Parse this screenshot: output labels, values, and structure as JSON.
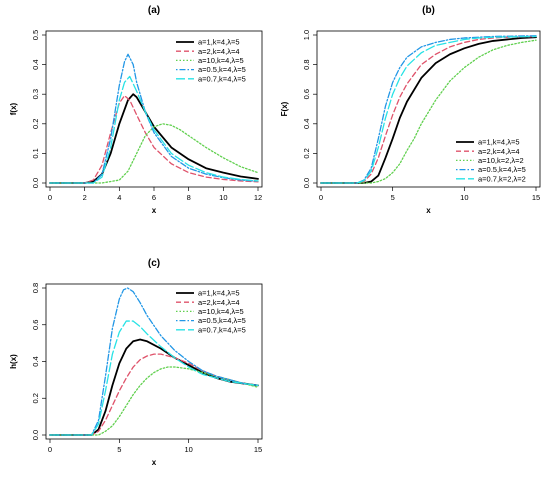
{
  "chart_data": [
    {
      "type": "line",
      "title": "(a)",
      "xlabel": "x",
      "ylabel": "f(x)",
      "xlim": [
        0,
        12
      ],
      "ylim": [
        0,
        0.5
      ],
      "xticks": [
        0,
        2,
        4,
        6,
        8,
        10,
        12
      ],
      "yticks": [
        0.0,
        0.1,
        0.2,
        0.3,
        0.4,
        0.5
      ],
      "ytick_labels": [
        "0.0",
        "0.1",
        "0.2",
        "0.3",
        "0.4",
        "0.5"
      ],
      "grid": false,
      "legend_position": "top-right",
      "series": [
        {
          "name": "a=1,k=4,λ=5",
          "color": "#000000",
          "style": "solid",
          "x": [
            0,
            2,
            2.5,
            3,
            3.5,
            4,
            4.5,
            4.8,
            5,
            5.5,
            6,
            7,
            8,
            9,
            10,
            11,
            12
          ],
          "y": [
            0,
            0,
            0.005,
            0.03,
            0.1,
            0.2,
            0.28,
            0.3,
            0.29,
            0.24,
            0.19,
            0.12,
            0.08,
            0.05,
            0.035,
            0.022,
            0.014
          ]
        },
        {
          "name": "a=2,k=4,λ=4",
          "color": "#df536b",
          "style": "dashed",
          "x": [
            0,
            2,
            2.5,
            3,
            3.5,
            4,
            4.3,
            4.6,
            5,
            5.5,
            6,
            7,
            8,
            9,
            10,
            11,
            12
          ],
          "y": [
            0,
            0,
            0.01,
            0.06,
            0.17,
            0.27,
            0.295,
            0.28,
            0.23,
            0.17,
            0.12,
            0.065,
            0.035,
            0.02,
            0.012,
            0.007,
            0.004
          ]
        },
        {
          "name": "a=10,k=4,λ=5",
          "color": "#61d04f",
          "style": "dotted",
          "x": [
            0,
            3,
            4,
            4.5,
            5,
            5.5,
            6,
            6.5,
            7,
            7.5,
            8,
            9,
            10,
            11,
            12
          ],
          "y": [
            0,
            0,
            0.01,
            0.04,
            0.1,
            0.16,
            0.19,
            0.2,
            0.195,
            0.18,
            0.16,
            0.12,
            0.085,
            0.055,
            0.035
          ]
        },
        {
          "name": "a=0.5,k=4,λ=5",
          "color": "#2297e6",
          "style": "dotdash",
          "x": [
            0,
            2.5,
            3,
            3.5,
            4,
            4.3,
            4.5,
            4.8,
            5,
            5.5,
            6,
            7,
            8,
            9,
            10,
            11,
            12
          ],
          "y": [
            0,
            0,
            0.03,
            0.15,
            0.33,
            0.41,
            0.435,
            0.4,
            0.34,
            0.24,
            0.17,
            0.09,
            0.05,
            0.03,
            0.018,
            0.01,
            0.006
          ]
        },
        {
          "name": "a=0.7,k=4,λ=5",
          "color": "#28e2e5",
          "style": "longdash",
          "x": [
            0,
            2.5,
            3,
            3.5,
            4,
            4.3,
            4.6,
            5,
            5.5,
            6,
            7,
            8,
            9,
            10,
            11,
            12
          ],
          "y": [
            0,
            0,
            0.02,
            0.12,
            0.28,
            0.34,
            0.36,
            0.31,
            0.24,
            0.18,
            0.1,
            0.06,
            0.035,
            0.02,
            0.012,
            0.007
          ]
        }
      ]
    },
    {
      "type": "line",
      "title": "(b)",
      "xlabel": "x",
      "ylabel": "F(x)",
      "xlim": [
        0,
        15
      ],
      "ylim": [
        0,
        1
      ],
      "xticks": [
        0,
        5,
        10,
        15
      ],
      "yticks": [
        0.0,
        0.2,
        0.4,
        0.6,
        0.8,
        1.0
      ],
      "ytick_labels": [
        "0.0",
        "0.2",
        "0.4",
        "0.6",
        "0.8",
        "1.0"
      ],
      "grid": false,
      "legend_position": "bottom-right",
      "series": [
        {
          "name": "a=1,k=4,λ=5",
          "color": "#000000",
          "style": "solid",
          "x": [
            0,
            3,
            3.5,
            4,
            4.5,
            5,
            5.5,
            6,
            7,
            8,
            9,
            10,
            11,
            12,
            13,
            14,
            15
          ],
          "y": [
            0,
            0,
            0.01,
            0.05,
            0.17,
            0.3,
            0.44,
            0.55,
            0.71,
            0.81,
            0.87,
            0.91,
            0.94,
            0.96,
            0.97,
            0.98,
            0.985
          ]
        },
        {
          "name": "a=2,k=4,λ=4",
          "color": "#df536b",
          "style": "dashed",
          "x": [
            0,
            2.5,
            3,
            3.5,
            4,
            4.5,
            5,
            5.5,
            6,
            7,
            8,
            9,
            10,
            11,
            12,
            13,
            15
          ],
          "y": [
            0,
            0,
            0.01,
            0.06,
            0.17,
            0.32,
            0.46,
            0.58,
            0.67,
            0.8,
            0.87,
            0.92,
            0.95,
            0.97,
            0.98,
            0.985,
            0.99
          ]
        },
        {
          "name": "a=10,k=2,λ=2",
          "color": "#61d04f",
          "style": "dotted",
          "x": [
            0,
            3.5,
            4,
            4.5,
            5,
            5.5,
            6,
            6.5,
            7,
            8,
            9,
            10,
            11,
            12,
            13,
            14,
            15
          ],
          "y": [
            0,
            0,
            0.01,
            0.03,
            0.07,
            0.13,
            0.22,
            0.3,
            0.4,
            0.56,
            0.69,
            0.78,
            0.85,
            0.9,
            0.93,
            0.95,
            0.965
          ]
        },
        {
          "name": "a=0.5,k=4,λ=5",
          "color": "#2297e6",
          "style": "dotdash",
          "x": [
            0,
            2.5,
            3,
            3.5,
            4,
            4.5,
            5,
            5.5,
            6,
            7,
            8,
            9,
            10,
            11,
            12,
            15
          ],
          "y": [
            0,
            0,
            0.02,
            0.1,
            0.3,
            0.52,
            0.68,
            0.78,
            0.85,
            0.92,
            0.95,
            0.97,
            0.98,
            0.985,
            0.99,
            0.995
          ]
        },
        {
          "name": "a=0.7,k=2,λ=2",
          "color": "#28e2e5",
          "style": "longdash",
          "x": [
            0,
            2.5,
            3,
            3.5,
            4,
            4.5,
            5,
            5.5,
            6,
            7,
            8,
            9,
            10,
            11,
            12,
            15
          ],
          "y": [
            0,
            0,
            0.015,
            0.08,
            0.24,
            0.44,
            0.6,
            0.71,
            0.79,
            0.88,
            0.93,
            0.95,
            0.97,
            0.98,
            0.985,
            0.99
          ]
        }
      ]
    },
    {
      "type": "line",
      "title": "(c)",
      "xlabel": "x",
      "ylabel": "h(x)",
      "xlim": [
        0,
        15
      ],
      "ylim": [
        0,
        0.8
      ],
      "xticks": [
        0,
        5,
        10,
        15
      ],
      "yticks": [
        0.0,
        0.2,
        0.4,
        0.6,
        0.8
      ],
      "ytick_labels": [
        "0.0",
        "0.2",
        "0.4",
        "0.6",
        "0.8"
      ],
      "grid": false,
      "legend_position": "top-right",
      "series": [
        {
          "name": "a=1,k=4,λ=5",
          "color": "#000000",
          "style": "solid",
          "x": [
            0,
            3,
            3.5,
            4,
            4.5,
            5,
            5.5,
            6,
            6.5,
            7,
            8,
            9,
            10,
            11,
            12,
            13,
            14,
            15
          ],
          "y": [
            0,
            0,
            0.03,
            0.13,
            0.27,
            0.39,
            0.47,
            0.51,
            0.52,
            0.51,
            0.47,
            0.42,
            0.38,
            0.34,
            0.31,
            0.29,
            0.28,
            0.27
          ]
        },
        {
          "name": "a=2,k=4,λ=4",
          "color": "#df536b",
          "style": "dashed",
          "x": [
            0,
            3,
            3.5,
            4,
            4.5,
            5,
            5.5,
            6,
            6.5,
            7,
            7.5,
            8,
            9,
            10,
            11,
            12,
            13,
            14,
            15
          ],
          "y": [
            0,
            0,
            0.02,
            0.08,
            0.16,
            0.24,
            0.31,
            0.37,
            0.41,
            0.43,
            0.44,
            0.44,
            0.42,
            0.39,
            0.35,
            0.32,
            0.3,
            0.28,
            0.27
          ]
        },
        {
          "name": "a=10,k=4,λ=5",
          "color": "#61d04f",
          "style": "dotted",
          "x": [
            0,
            3.5,
            4,
            4.5,
            5,
            5.5,
            6,
            6.5,
            7,
            7.5,
            8,
            8.5,
            9,
            10,
            11,
            12,
            13,
            14,
            15
          ],
          "y": [
            0,
            0,
            0.02,
            0.05,
            0.1,
            0.16,
            0.22,
            0.27,
            0.31,
            0.34,
            0.36,
            0.37,
            0.37,
            0.36,
            0.34,
            0.32,
            0.3,
            0.28,
            0.26
          ]
        },
        {
          "name": "a=0.5,k=4,λ=5",
          "color": "#2297e6",
          "style": "dotdash",
          "x": [
            0,
            3,
            3.5,
            4,
            4.5,
            5,
            5.3,
            5.6,
            6,
            6.5,
            7,
            8,
            9,
            10,
            11,
            12,
            13,
            14,
            15
          ],
          "y": [
            0,
            0,
            0.08,
            0.32,
            0.58,
            0.74,
            0.79,
            0.8,
            0.78,
            0.72,
            0.65,
            0.54,
            0.46,
            0.4,
            0.35,
            0.32,
            0.3,
            0.28,
            0.27
          ]
        },
        {
          "name": "a=0.7,k=4,λ=5",
          "color": "#28e2e5",
          "style": "longdash",
          "x": [
            0,
            3,
            3.5,
            4,
            4.5,
            5,
            5.5,
            6,
            6.5,
            7,
            8,
            9,
            10,
            11,
            12,
            13,
            14,
            15
          ],
          "y": [
            0,
            0,
            0.06,
            0.24,
            0.44,
            0.56,
            0.62,
            0.62,
            0.59,
            0.55,
            0.48,
            0.42,
            0.37,
            0.33,
            0.31,
            0.29,
            0.28,
            0.27
          ]
        }
      ]
    }
  ]
}
